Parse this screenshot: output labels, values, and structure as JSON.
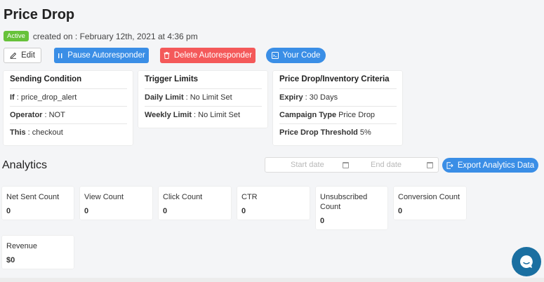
{
  "page": {
    "title": "Price Drop",
    "status": "Active",
    "created_on": "created on : February 12th, 2021 at 4:36 pm"
  },
  "actions": {
    "edit": "Edit",
    "pause": "Pause Autoresponder",
    "delete": "Delete Autoresponder",
    "your_code": "Your Code"
  },
  "cards": {
    "sending_condition": {
      "title": "Sending Condition",
      "rows": [
        {
          "key": "If",
          "value": ": price_drop_alert"
        },
        {
          "key": "Operator",
          "value": ": NOT"
        },
        {
          "key": "This",
          "value": ": checkout"
        }
      ]
    },
    "trigger_limits": {
      "title": "Trigger Limits",
      "rows": [
        {
          "key": "Daily Limit",
          "value": ": No Limit Set"
        },
        {
          "key": "Weekly Limit",
          "value": ": No Limit Set"
        }
      ]
    },
    "criteria": {
      "title": "Price Drop/Inventory Criteria",
      "rows": [
        {
          "key": "Expiry",
          "value": ": 30 Days"
        },
        {
          "key": "Campaign Type",
          "value": "Price Drop"
        },
        {
          "key": "Price Drop Threshold",
          "value": "5%"
        }
      ]
    }
  },
  "analytics": {
    "title": "Analytics",
    "start_placeholder": "Start date",
    "end_placeholder": "End date",
    "export_label": "Export Analytics Data",
    "metrics": [
      {
        "label": "Net Sent Count",
        "value": "0"
      },
      {
        "label": "View Count",
        "value": "0"
      },
      {
        "label": "Click Count",
        "value": "0"
      },
      {
        "label": "CTR",
        "value": "0"
      },
      {
        "label": "Unsubscribed Count",
        "value": "0"
      },
      {
        "label": "Conversion Count",
        "value": "0"
      },
      {
        "label": "Revenue",
        "value": "$0"
      }
    ]
  },
  "icons": {
    "edit": "pencil-icon",
    "pause": "pause-icon",
    "delete": "trash-icon",
    "code": "code-icon",
    "calendar": "calendar-icon",
    "export": "export-icon",
    "chat": "chat-bubble-icon"
  },
  "colors": {
    "primary": "#3a8ee6",
    "danger": "#f4595a",
    "success": "#67c23a",
    "chat": "#1a6fa1"
  }
}
